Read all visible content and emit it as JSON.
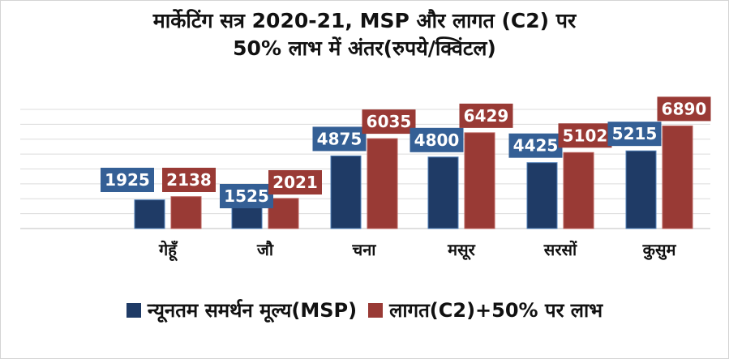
{
  "chart_data": {
    "type": "bar",
    "title_line1": "मार्केटिंग सत्र 2020-21, MSP और लागत (C2) पर",
    "title_line2": "50% लाभ में अंतर(रुपये/क्विंटल)",
    "categories": [
      "गेहूँ",
      "जौ",
      "चना",
      "मसूर",
      "सरसों",
      "कुसुम"
    ],
    "series": [
      {
        "name": "न्यूनतम समर्थन मूल्य(MSP)",
        "values": [
          1925,
          1525,
          4875,
          4800,
          4425,
          5215
        ],
        "color": "#1f3b66"
      },
      {
        "name": "लागत(C2)+50% पर लाभ",
        "values": [
          2138,
          2021,
          6035,
          6429,
          5102,
          6890
        ],
        "color": "#993a35"
      }
    ],
    "ylim": [
      0,
      8000
    ],
    "grid": true,
    "legend_position": "bottom",
    "label_colors": [
      "#345f95",
      "#993a35"
    ]
  }
}
